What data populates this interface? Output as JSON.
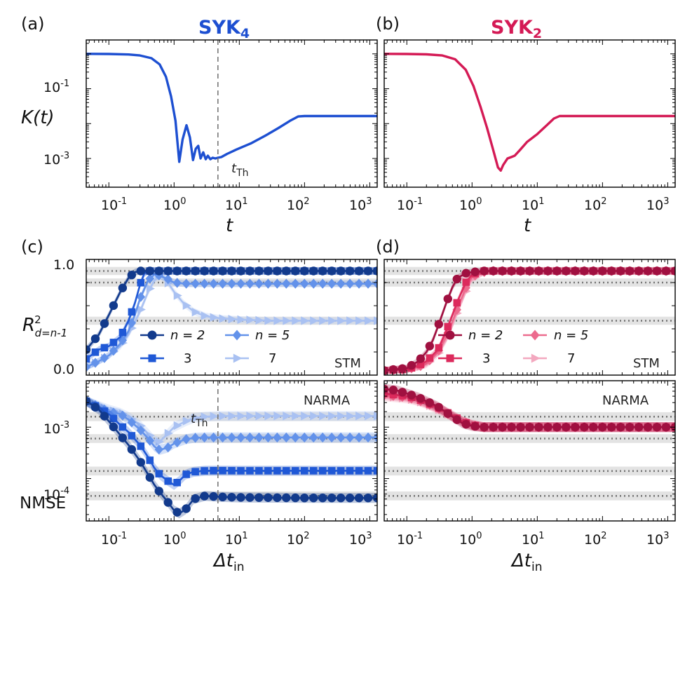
{
  "colors": {
    "syk4": "#1d4fd1",
    "syk2": "#d41a55",
    "blue": [
      "#123a8c",
      "#1f58d6",
      "#6392ea",
      "#a9c1f2"
    ],
    "pink": [
      "#a01040",
      "#dc2a5c",
      "#ec6b8e",
      "#f3a8bf"
    ]
  },
  "panels": {
    "a": {
      "letter": "(a)",
      "title": "SYK",
      "title_sub": "4"
    },
    "b": {
      "letter": "(b)",
      "title": "SYK",
      "title_sub": "2"
    },
    "c": {
      "letter": "(c)"
    },
    "d": {
      "letter": "(d)"
    }
  },
  "labels": {
    "t_axis": "t",
    "k_axis_main": "K(t)",
    "dt_main": "Δt",
    "dt_sub": "in",
    "r2_main": "R",
    "r2_sup": "2",
    "r2_sub": "d=n-1",
    "nmse": "NMSE",
    "t_th_main": "t",
    "t_th_sub": "Th",
    "stm": "STM",
    "narma": "NARMA"
  },
  "legend": {
    "entries": [
      {
        "label": "n = 2"
      },
      {
        "label": "3"
      },
      {
        "label": "n = 5"
      },
      {
        "label": "7"
      }
    ]
  },
  "ticks": {
    "x": [
      {
        "base": "10",
        "exp": "-1"
      },
      {
        "base": "10",
        "exp": "0"
      },
      {
        "base": "10",
        "exp": "1"
      },
      {
        "base": "10",
        "exp": "2"
      },
      {
        "base": "10",
        "exp": "3"
      }
    ],
    "k_y": [
      {
        "base": "10",
        "exp": "-1"
      },
      {
        "base": "10",
        "exp": "-3"
      }
    ],
    "r2_y": [
      "1.0",
      "0.0"
    ],
    "nmse_y": [
      {
        "base": "10",
        "exp": "-3"
      },
      {
        "base": "10",
        "exp": "-4"
      }
    ]
  },
  "chart_data": [
    {
      "type": "line",
      "panel": "a",
      "title": "SYK4",
      "xlabel": "t",
      "ylabel": "K(t)",
      "xscale": "log",
      "yscale": "log",
      "xlim": [
        0.045,
        1300
      ],
      "ylim": [
        0.00015,
        2.5
      ],
      "t_Th": 4.7,
      "series": [
        {
          "name": "SYK4",
          "x": [
            0.045,
            0.1,
            0.2,
            0.3,
            0.45,
            0.6,
            0.75,
            0.9,
            1.05,
            1.2,
            1.35,
            1.55,
            1.75,
            1.95,
            2.15,
            2.35,
            2.55,
            2.8,
            3.05,
            3.3,
            3.6,
            3.9,
            4.3,
            4.7,
            5.3,
            6.5,
            9,
            15,
            25,
            40,
            60,
            80,
            100,
            300,
            1300
          ],
          "y": [
            1.0,
            0.99,
            0.96,
            0.9,
            0.75,
            0.5,
            0.22,
            0.06,
            0.012,
            0.0008,
            0.0035,
            0.009,
            0.004,
            0.0009,
            0.0019,
            0.0023,
            0.001,
            0.0015,
            0.00095,
            0.0012,
            0.00095,
            0.00105,
            0.001,
            0.00105,
            0.0011,
            0.00135,
            0.0018,
            0.0027,
            0.0045,
            0.0075,
            0.012,
            0.016,
            0.0165,
            0.0165,
            0.0165
          ]
        }
      ]
    },
    {
      "type": "line",
      "panel": "b",
      "title": "SYK2",
      "xlabel": "t",
      "xscale": "log",
      "yscale": "log",
      "xlim": [
        0.045,
        1300
      ],
      "ylim": [
        0.00015,
        2.5
      ],
      "series": [
        {
          "name": "SYK2",
          "x": [
            0.045,
            0.1,
            0.2,
            0.35,
            0.55,
            0.8,
            1.05,
            1.35,
            1.7,
            2.1,
            2.5,
            2.75,
            3.0,
            3.5,
            4.0,
            4.5,
            5.5,
            7,
            10,
            14,
            18,
            22,
            100,
            1300
          ],
          "y": [
            1.0,
            0.99,
            0.97,
            0.9,
            0.7,
            0.35,
            0.12,
            0.03,
            0.0075,
            0.0018,
            0.00055,
            0.00045,
            0.00065,
            0.001,
            0.0011,
            0.0012,
            0.0018,
            0.003,
            0.005,
            0.009,
            0.014,
            0.0165,
            0.0165,
            0.0165
          ]
        }
      ]
    },
    {
      "type": "line",
      "panel": "c",
      "xlabel": "Δt_in",
      "ylabel": "R^2_{d=n-1}",
      "xscale": "log",
      "xlim": [
        0.045,
        1300
      ],
      "ylim": [
        0,
        1
      ],
      "reference_lines": [
        0.9,
        0.8,
        0.47
      ],
      "series": [
        {
          "name": "n = 2",
          "marker": "circle",
          "x": [
            0.045,
            0.07,
            0.1,
            0.15,
            0.2,
            0.25,
            0.3,
            0.4,
            1,
            10,
            100,
            1300
          ],
          "y": [
            0.22,
            0.35,
            0.52,
            0.72,
            0.84,
            0.89,
            0.9,
            0.9,
            0.9,
            0.9,
            0.9,
            0.9
          ]
        },
        {
          "name": "3",
          "marker": "square",
          "x": [
            0.045,
            0.07,
            0.1,
            0.15,
            0.2,
            0.25,
            0.3,
            0.35,
            0.4,
            0.5,
            1,
            10,
            100,
            1300
          ],
          "y": [
            0.14,
            0.22,
            0.25,
            0.33,
            0.47,
            0.62,
            0.78,
            0.88,
            0.9,
            0.9,
            0.9,
            0.9,
            0.9,
            0.9
          ]
        },
        {
          "name": "n = 5",
          "marker": "diamond",
          "x": [
            0.045,
            0.07,
            0.1,
            0.15,
            0.2,
            0.25,
            0.3,
            0.4,
            0.5,
            0.6,
            0.8,
            1.0,
            1.5,
            3,
            10,
            100,
            1300
          ],
          "y": [
            0.07,
            0.12,
            0.17,
            0.27,
            0.38,
            0.52,
            0.66,
            0.82,
            0.87,
            0.86,
            0.83,
            0.8,
            0.79,
            0.79,
            0.79,
            0.79,
            0.79
          ]
        },
        {
          "name": "7",
          "marker": "triangle-right",
          "x": [
            0.045,
            0.07,
            0.1,
            0.15,
            0.2,
            0.3,
            0.4,
            0.5,
            0.6,
            0.7,
            0.8,
            1.0,
            1.4,
            2,
            3,
            5,
            10,
            30,
            100,
            1300
          ],
          "y": [
            0.07,
            0.12,
            0.17,
            0.25,
            0.35,
            0.55,
            0.72,
            0.82,
            0.86,
            0.84,
            0.8,
            0.72,
            0.62,
            0.55,
            0.51,
            0.49,
            0.48,
            0.47,
            0.47,
            0.47
          ]
        }
      ]
    },
    {
      "type": "line",
      "panel": "d",
      "xlabel": "Δt_in",
      "xscale": "log",
      "xlim": [
        0.045,
        1300
      ],
      "ylim": [
        0,
        1
      ],
      "reference_lines": [
        0.9,
        0.8,
        0.47
      ],
      "series": [
        {
          "name": "n = 2",
          "marker": "circle",
          "x": [
            0.045,
            0.1,
            0.15,
            0.2,
            0.25,
            0.3,
            0.4,
            0.5,
            0.6,
            0.8,
            1.0,
            1.5,
            2,
            10,
            100,
            1300
          ],
          "y": [
            0.04,
            0.06,
            0.12,
            0.2,
            0.3,
            0.42,
            0.62,
            0.76,
            0.84,
            0.88,
            0.89,
            0.9,
            0.9,
            0.9,
            0.9,
            0.9
          ]
        },
        {
          "name": "3",
          "marker": "square",
          "x": [
            0.045,
            0.1,
            0.15,
            0.2,
            0.3,
            0.4,
            0.5,
            0.6,
            0.8,
            1.0,
            1.5,
            2,
            10,
            100,
            1300
          ],
          "y": [
            0.04,
            0.05,
            0.08,
            0.12,
            0.22,
            0.38,
            0.52,
            0.64,
            0.8,
            0.87,
            0.9,
            0.9,
            0.9,
            0.9,
            0.9
          ]
        },
        {
          "name": "n = 5",
          "marker": "diamond",
          "x": [
            0.045,
            0.1,
            0.15,
            0.2,
            0.3,
            0.4,
            0.5,
            0.6,
            0.8,
            1.0,
            1.5,
            2,
            10,
            100,
            1300
          ],
          "y": [
            0.04,
            0.05,
            0.07,
            0.1,
            0.2,
            0.33,
            0.46,
            0.58,
            0.75,
            0.85,
            0.89,
            0.9,
            0.9,
            0.9,
            0.9
          ]
        },
        {
          "name": "7",
          "marker": "triangle-right",
          "x": [
            0.045,
            0.1,
            0.15,
            0.2,
            0.3,
            0.4,
            0.5,
            0.6,
            0.8,
            1.0,
            1.5,
            2,
            10,
            100,
            1300
          ],
          "y": [
            0.04,
            0.05,
            0.07,
            0.09,
            0.18,
            0.3,
            0.43,
            0.55,
            0.72,
            0.83,
            0.89,
            0.9,
            0.9,
            0.9,
            0.9
          ]
        }
      ]
    },
    {
      "type": "line",
      "panel": "c",
      "xlabel": "Δt_in",
      "ylabel": "NMSE",
      "xscale": "log",
      "yscale": "log",
      "xlim": [
        0.045,
        1300
      ],
      "ylim": [
        1.5e-05,
        0.008
      ],
      "t_Th": 4.7,
      "reference_lines": [
        0.0016,
        0.0006,
        0.00014,
        4.6e-05
      ],
      "series": [
        {
          "name": "n = 2",
          "marker": "circle",
          "x": [
            0.045,
            0.07,
            0.1,
            0.15,
            0.2,
            0.3,
            0.4,
            0.5,
            0.6,
            0.8,
            1.0,
            1.2,
            1.5,
            2,
            3,
            5,
            10,
            100,
            1300
          ],
          "y": [
            0.0032,
            0.0022,
            0.0013,
            0.0007,
            0.00045,
            0.00022,
            0.00012,
            7.5e-05,
            5.5e-05,
            3.5e-05,
            2.4e-05,
            2.1e-05,
            2.5e-05,
            4e-05,
            4.6e-05,
            4.4e-05,
            4.3e-05,
            4.2e-05,
            4.2e-05
          ]
        },
        {
          "name": "3",
          "marker": "square",
          "x": [
            0.045,
            0.07,
            0.1,
            0.15,
            0.2,
            0.3,
            0.4,
            0.5,
            0.6,
            0.8,
            1.0,
            1.2,
            1.5,
            2,
            3,
            5,
            10,
            100,
            1300
          ],
          "y": [
            0.0032,
            0.0024,
            0.0018,
            0.0011,
            0.0008,
            0.00045,
            0.00026,
            0.00016,
            0.00012,
            9e-05,
            7.5e-05,
            9e-05,
            0.00012,
            0.000135,
            0.000142,
            0.000143,
            0.000142,
            0.000142,
            0.000142
          ]
        },
        {
          "name": "n = 5",
          "marker": "diamond",
          "x": [
            0.045,
            0.07,
            0.1,
            0.15,
            0.2,
            0.3,
            0.4,
            0.5,
            0.6,
            0.8,
            1.0,
            1.5,
            2,
            3,
            5,
            10,
            100,
            1300
          ],
          "y": [
            0.0032,
            0.0025,
            0.002,
            0.0018,
            0.0014,
            0.0009,
            0.0006,
            0.00042,
            0.00036,
            0.0004,
            0.00048,
            0.00058,
            0.00062,
            0.00063,
            0.00063,
            0.00063,
            0.00063,
            0.00063
          ]
        },
        {
          "name": "7",
          "marker": "triangle-right",
          "x": [
            0.045,
            0.07,
            0.1,
            0.15,
            0.2,
            0.3,
            0.4,
            0.5,
            0.6,
            0.8,
            1.0,
            1.5,
            2,
            3,
            5,
            10,
            100,
            1300
          ],
          "y": [
            0.0032,
            0.0026,
            0.0022,
            0.0019,
            0.0016,
            0.0011,
            0.00075,
            0.00055,
            0.00052,
            0.00075,
            0.001,
            0.0013,
            0.0015,
            0.0016,
            0.00165,
            0.00165,
            0.00165,
            0.00165
          ]
        }
      ]
    },
    {
      "type": "line",
      "panel": "d",
      "xlabel": "Δt_in",
      "xscale": "log",
      "yscale": "log",
      "xlim": [
        0.045,
        1300
      ],
      "ylim": [
        1.5e-05,
        0.008
      ],
      "reference_lines": [
        0.0016,
        0.0006,
        0.00014,
        4.6e-05
      ],
      "series": [
        {
          "name": "n = 2",
          "marker": "circle",
          "x": [
            0.045,
            0.07,
            0.1,
            0.15,
            0.2,
            0.3,
            0.5,
            0.7,
            1.0,
            1.5,
            2,
            10,
            100,
            1300
          ],
          "y": [
            0.0055,
            0.0052,
            0.0045,
            0.0038,
            0.0032,
            0.0025,
            0.0016,
            0.0012,
            0.00105,
            0.001,
            0.001,
            0.001,
            0.001,
            0.001
          ]
        },
        {
          "name": "3",
          "marker": "square",
          "x": [
            0.045,
            0.1,
            0.15,
            0.2,
            0.3,
            0.5,
            0.7,
            1.0,
            1.5,
            2,
            10,
            100,
            1300
          ],
          "y": [
            0.0045,
            0.004,
            0.0035,
            0.003,
            0.0024,
            0.0017,
            0.0013,
            0.0011,
            0.001,
            0.001,
            0.001,
            0.001,
            0.001
          ]
        },
        {
          "name": "n = 5",
          "marker": "diamond",
          "x": [
            0.045,
            0.1,
            0.15,
            0.2,
            0.3,
            0.5,
            0.7,
            1.0,
            1.5,
            2,
            10,
            100,
            1300
          ],
          "y": [
            0.0042,
            0.0038,
            0.0033,
            0.0029,
            0.0023,
            0.0016,
            0.0013,
            0.0011,
            0.001,
            0.001,
            0.001,
            0.001,
            0.001
          ]
        },
        {
          "name": "7",
          "marker": "triangle-right",
          "x": [
            0.045,
            0.1,
            0.15,
            0.2,
            0.3,
            0.5,
            0.7,
            1.0,
            1.5,
            2,
            10,
            100,
            1300
          ],
          "y": [
            0.004,
            0.0036,
            0.0032,
            0.0028,
            0.0022,
            0.0016,
            0.0013,
            0.0011,
            0.001,
            0.001,
            0.001,
            0.001,
            0.001
          ]
        }
      ]
    }
  ]
}
